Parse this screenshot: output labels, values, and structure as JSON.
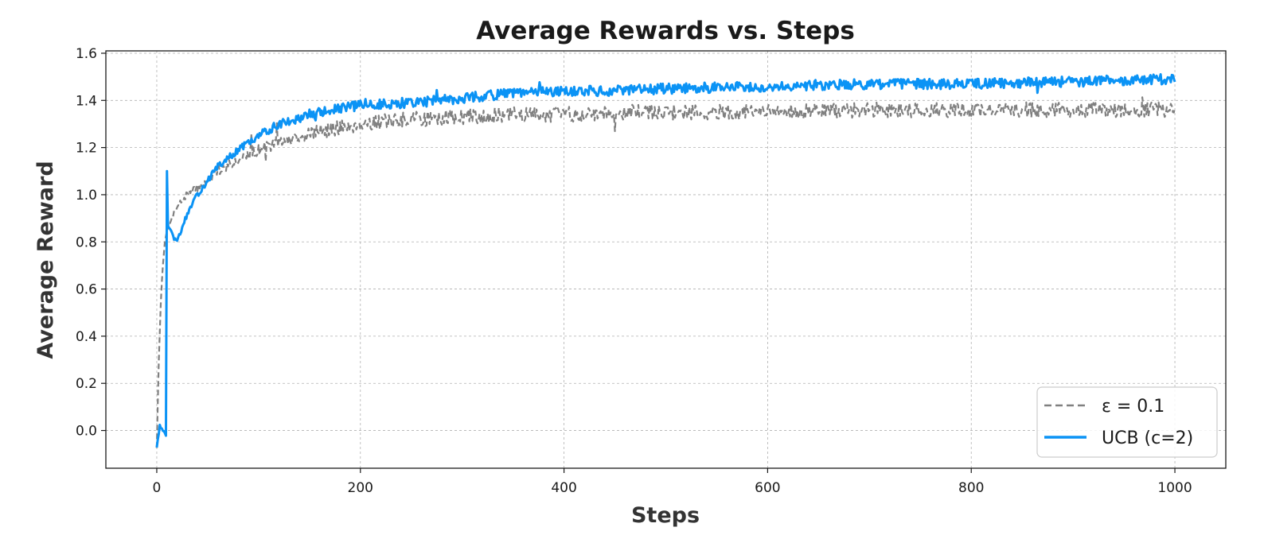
{
  "chart_data": {
    "type": "line",
    "title": "Average Rewards vs. Steps",
    "xlabel": "Steps",
    "ylabel": "Average Reward",
    "xlim": [
      -50,
      1050
    ],
    "ylim": [
      -0.16,
      1.61
    ],
    "xticks": [
      0,
      200,
      400,
      600,
      800,
      1000
    ],
    "yticks": [
      0.0,
      0.2,
      0.4,
      0.6,
      0.8,
      1.0,
      1.2,
      1.4,
      1.6
    ],
    "xtick_labels": [
      "0",
      "200",
      "400",
      "600",
      "800",
      "1000"
    ],
    "ytick_labels": [
      "0.0",
      "0.2",
      "0.4",
      "0.6",
      "0.8",
      "1.0",
      "1.2",
      "1.4",
      "1.6"
    ],
    "grid": true,
    "legend_position": "lower-right",
    "series": [
      {
        "name": "ε = 0.1",
        "color": "#808080",
        "style": "dashed",
        "x": [
          0,
          2,
          4,
          6,
          8,
          10,
          14,
          20,
          30,
          40,
          50,
          60,
          80,
          100,
          120,
          150,
          200,
          250,
          300,
          350,
          400,
          450,
          500,
          600,
          700,
          800,
          900,
          1000
        ],
        "values": [
          -0.07,
          0.3,
          0.55,
          0.7,
          0.8,
          0.85,
          0.9,
          0.95,
          1.0,
          1.03,
          1.06,
          1.1,
          1.15,
          1.19,
          1.22,
          1.26,
          1.3,
          1.32,
          1.33,
          1.34,
          1.34,
          1.35,
          1.35,
          1.35,
          1.36,
          1.36,
          1.36,
          1.36
        ]
      },
      {
        "name": "UCB (c=2)",
        "color": "#0b93f5",
        "style": "solid",
        "x": [
          0,
          3,
          6,
          9,
          10,
          11,
          13,
          16,
          20,
          25,
          30,
          40,
          50,
          60,
          80,
          100,
          120,
          150,
          200,
          250,
          300,
          350,
          400,
          450,
          500,
          600,
          700,
          800,
          900,
          1000
        ],
        "values": [
          -0.07,
          0.02,
          0.0,
          -0.02,
          1.1,
          0.87,
          0.85,
          0.82,
          0.8,
          0.86,
          0.92,
          1.0,
          1.06,
          1.12,
          1.19,
          1.25,
          1.3,
          1.34,
          1.38,
          1.39,
          1.41,
          1.43,
          1.44,
          1.44,
          1.45,
          1.46,
          1.47,
          1.47,
          1.48,
          1.49
        ]
      }
    ]
  }
}
